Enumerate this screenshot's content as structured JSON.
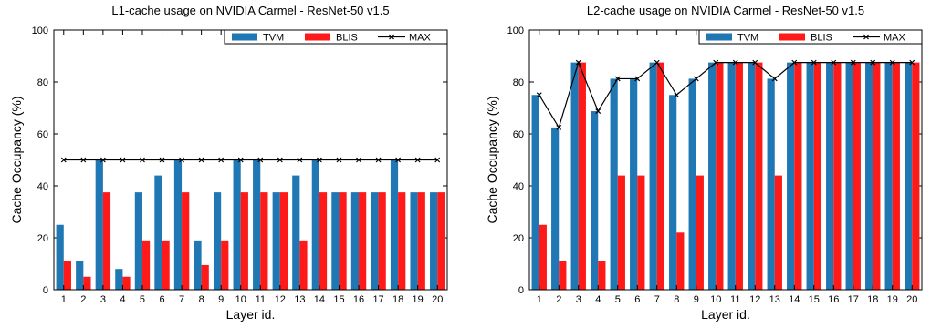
{
  "chart_data": [
    {
      "type": "bar",
      "title": "L1-cache usage on NVIDIA Carmel - ResNet-50 v1.5",
      "xlabel": "Layer id.",
      "ylabel": "Cache Occupancy (%)",
      "ylim": [
        0,
        100
      ],
      "yticks": [
        0,
        20,
        40,
        60,
        80,
        100
      ],
      "categories": [
        "1",
        "2",
        "3",
        "4",
        "5",
        "6",
        "7",
        "8",
        "9",
        "10",
        "11",
        "12",
        "13",
        "14",
        "15",
        "16",
        "17",
        "18",
        "19",
        "20"
      ],
      "legend_position": "top-right",
      "series": [
        {
          "name": "TVM",
          "kind": "bar",
          "color": "#1f77b4",
          "values": [
            25,
            11,
            50,
            8,
            37.5,
            44,
            50,
            19,
            37.5,
            50,
            50,
            37.5,
            44,
            50,
            37.5,
            37.5,
            37.5,
            50,
            37.5,
            37.5
          ]
        },
        {
          "name": "BLIS",
          "kind": "bar",
          "color": "#ff1a1a",
          "values": [
            11,
            5,
            37.5,
            5,
            19,
            19,
            37.5,
            9.5,
            19,
            37.5,
            37.5,
            37.5,
            19,
            37.5,
            37.5,
            37.5,
            37.5,
            37.5,
            37.5,
            37.5
          ]
        },
        {
          "name": "MAX",
          "kind": "line",
          "color": "#000000",
          "values": [
            50,
            50,
            50,
            50,
            50,
            50,
            50,
            50,
            50,
            50,
            50,
            50,
            50,
            50,
            50,
            50,
            50,
            50,
            50,
            50
          ]
        }
      ]
    },
    {
      "type": "bar",
      "title": "L2-cache usage on NVIDIA Carmel - ResNet-50 v1.5",
      "xlabel": "Layer id.",
      "ylabel": "Cache Occupancy (%)",
      "ylim": [
        0,
        100
      ],
      "yticks": [
        0,
        20,
        40,
        60,
        80,
        100
      ],
      "categories": [
        "1",
        "2",
        "3",
        "4",
        "5",
        "6",
        "7",
        "8",
        "9",
        "10",
        "11",
        "12",
        "13",
        "14",
        "15",
        "16",
        "17",
        "18",
        "19",
        "20"
      ],
      "legend_position": "top-right",
      "series": [
        {
          "name": "TVM",
          "kind": "bar",
          "color": "#1f77b4",
          "values": [
            75,
            62.5,
            87.5,
            68.75,
            81.25,
            81.25,
            87.5,
            75,
            81.25,
            87.5,
            87.5,
            87.5,
            81.25,
            87.5,
            87.5,
            87.5,
            87.5,
            87.5,
            87.5,
            87.5
          ]
        },
        {
          "name": "BLIS",
          "kind": "bar",
          "color": "#ff1a1a",
          "values": [
            25,
            11,
            87.5,
            11,
            44,
            44,
            87.5,
            22,
            44,
            87.5,
            87.5,
            87.5,
            44,
            87.5,
            87.5,
            87.5,
            87.5,
            87.5,
            87.5,
            87.5
          ]
        },
        {
          "name": "MAX",
          "kind": "line",
          "color": "#000000",
          "values": [
            75,
            62.5,
            87.5,
            68.75,
            81.25,
            81.25,
            87.5,
            75,
            81.25,
            87.5,
            87.5,
            87.5,
            81.25,
            87.5,
            87.5,
            87.5,
            87.5,
            87.5,
            87.5,
            87.5
          ]
        }
      ]
    }
  ]
}
